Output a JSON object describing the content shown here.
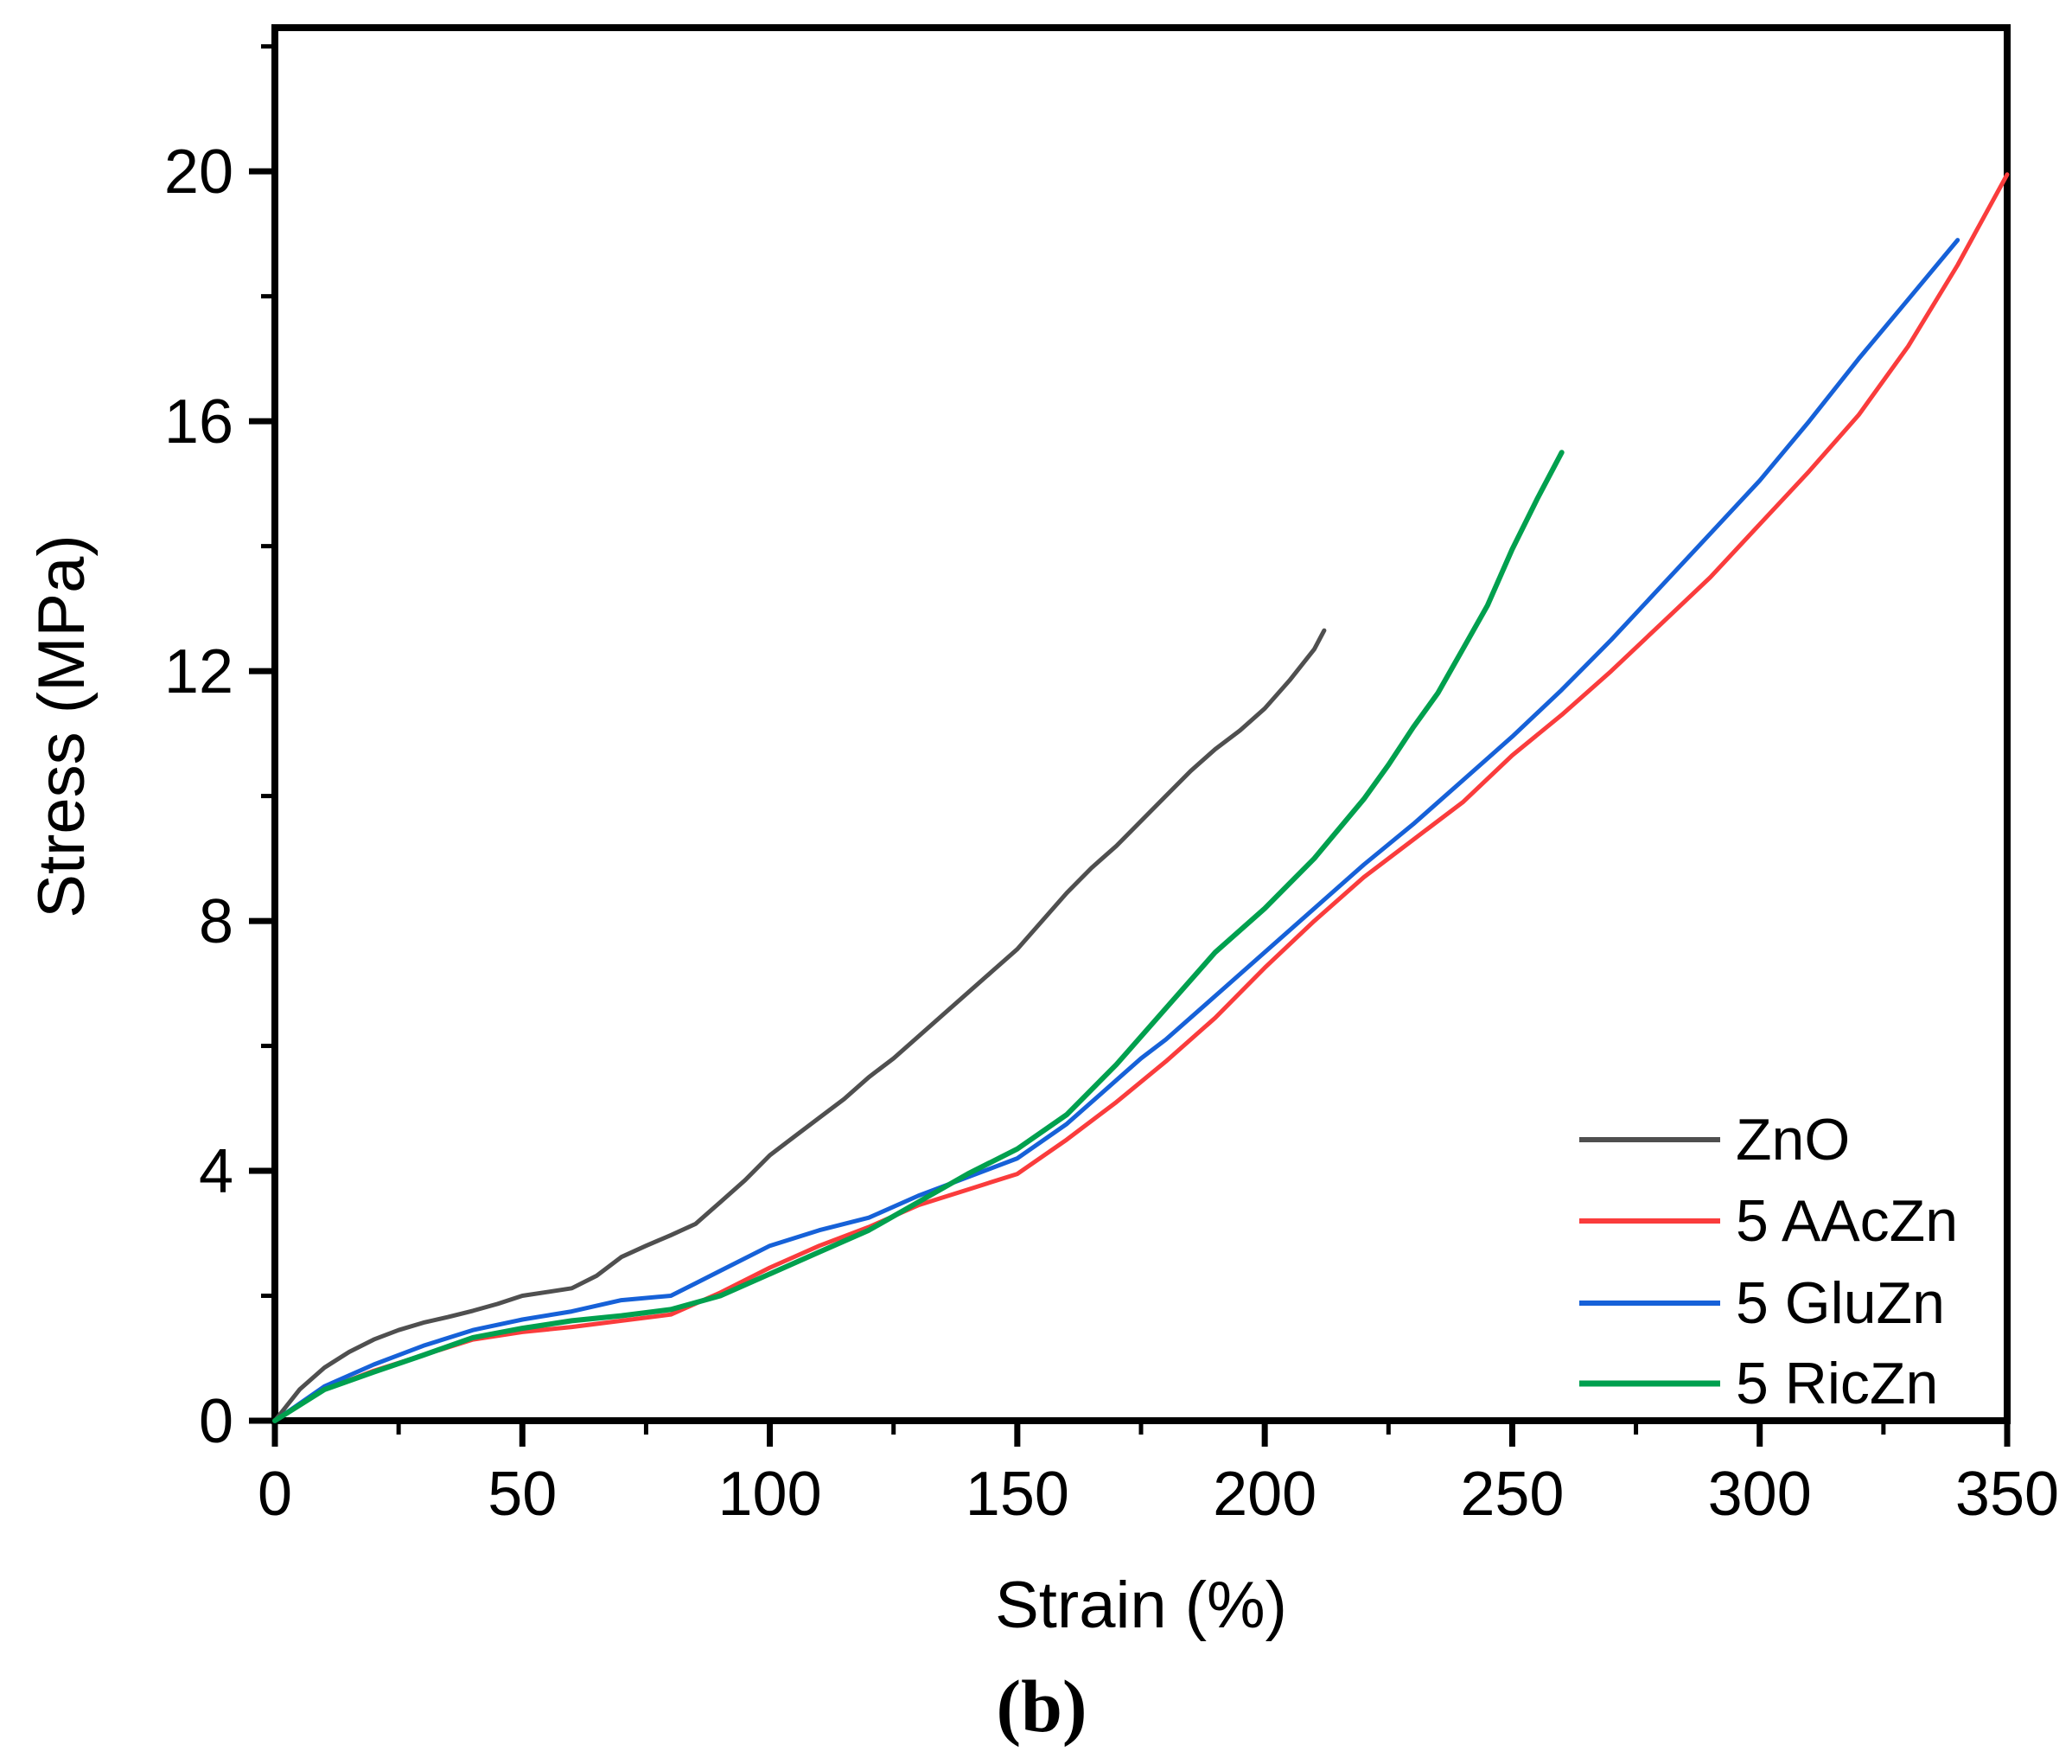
{
  "figure": {
    "caption": "(b)"
  },
  "chart_data": {
    "type": "line",
    "title": "",
    "xlabel": "Strain (%)",
    "ylabel": "Stress (MPa)",
    "xlim": [
      0,
      350
    ],
    "ylim": [
      0,
      22.3
    ],
    "x_major_ticks": [
      0,
      50,
      100,
      150,
      200,
      250,
      300,
      350
    ],
    "x_major_tick_labels": [
      "0",
      "50",
      "100",
      "150",
      "200",
      "250",
      "300",
      "350"
    ],
    "x_minor_ticks": [
      25,
      75,
      125,
      175,
      225,
      275,
      325
    ],
    "y_major_ticks": [
      0,
      4,
      8,
      12,
      16,
      20
    ],
    "y_major_tick_labels": [
      "0",
      "4",
      "8",
      "12",
      "16",
      "20"
    ],
    "y_minor_ticks": [
      2,
      6,
      10,
      14,
      18,
      22
    ],
    "grid": false,
    "legend_position": "lower right inside",
    "axis_color": "#000000",
    "background_color": "#ffffff",
    "series": [
      {
        "name": "ZnO",
        "color": "#4f4f4f",
        "stroke_width": 5,
        "points": [
          [
            0,
            0
          ],
          [
            5,
            0.5
          ],
          [
            10,
            0.85
          ],
          [
            15,
            1.1
          ],
          [
            20,
            1.3
          ],
          [
            25,
            1.45
          ],
          [
            30,
            1.57
          ],
          [
            35,
            1.66
          ],
          [
            40,
            1.76
          ],
          [
            45,
            1.87
          ],
          [
            50,
            2.0
          ],
          [
            55,
            2.06
          ],
          [
            60,
            2.12
          ],
          [
            65,
            2.32
          ],
          [
            70,
            2.62
          ],
          [
            75,
            2.8
          ],
          [
            80,
            2.97
          ],
          [
            85,
            3.15
          ],
          [
            90,
            3.5
          ],
          [
            95,
            3.85
          ],
          [
            100,
            4.25
          ],
          [
            105,
            4.55
          ],
          [
            110,
            4.85
          ],
          [
            115,
            5.15
          ],
          [
            120,
            5.5
          ],
          [
            125,
            5.8
          ],
          [
            130,
            6.15
          ],
          [
            135,
            6.5
          ],
          [
            140,
            6.85
          ],
          [
            145,
            7.2
          ],
          [
            150,
            7.55
          ],
          [
            155,
            8.0
          ],
          [
            160,
            8.45
          ],
          [
            165,
            8.85
          ],
          [
            170,
            9.2
          ],
          [
            175,
            9.6
          ],
          [
            180,
            10.0
          ],
          [
            185,
            10.4
          ],
          [
            190,
            10.75
          ],
          [
            195,
            11.05
          ],
          [
            200,
            11.4
          ],
          [
            205,
            11.85
          ],
          [
            210,
            12.35
          ],
          [
            212,
            12.65
          ]
        ]
      },
      {
        "name": "5 AAcZn",
        "color": "#fa3c3c",
        "stroke_width": 5,
        "points": [
          [
            0,
            0
          ],
          [
            10,
            0.5
          ],
          [
            20,
            0.8
          ],
          [
            30,
            1.05
          ],
          [
            40,
            1.3
          ],
          [
            50,
            1.42
          ],
          [
            60,
            1.5
          ],
          [
            70,
            1.6
          ],
          [
            80,
            1.7
          ],
          [
            90,
            2.05
          ],
          [
            100,
            2.45
          ],
          [
            110,
            2.8
          ],
          [
            120,
            3.1
          ],
          [
            130,
            3.45
          ],
          [
            140,
            3.7
          ],
          [
            150,
            3.95
          ],
          [
            160,
            4.5
          ],
          [
            170,
            5.1
          ],
          [
            180,
            5.75
          ],
          [
            190,
            6.45
          ],
          [
            200,
            7.25
          ],
          [
            210,
            8.0
          ],
          [
            220,
            8.7
          ],
          [
            230,
            9.3
          ],
          [
            240,
            9.9
          ],
          [
            250,
            10.65
          ],
          [
            260,
            11.3
          ],
          [
            270,
            12.0
          ],
          [
            280,
            12.75
          ],
          [
            290,
            13.5
          ],
          [
            300,
            14.35
          ],
          [
            310,
            15.2
          ],
          [
            320,
            16.1
          ],
          [
            330,
            17.2
          ],
          [
            340,
            18.5
          ],
          [
            350,
            19.95
          ]
        ]
      },
      {
        "name": "5 GluZn",
        "color": "#1661d8",
        "stroke_width": 5,
        "points": [
          [
            0,
            0
          ],
          [
            10,
            0.55
          ],
          [
            20,
            0.9
          ],
          [
            30,
            1.2
          ],
          [
            40,
            1.45
          ],
          [
            50,
            1.62
          ],
          [
            60,
            1.75
          ],
          [
            70,
            1.93
          ],
          [
            80,
            2.0
          ],
          [
            85,
            2.2
          ],
          [
            90,
            2.4
          ],
          [
            100,
            2.8
          ],
          [
            110,
            3.05
          ],
          [
            120,
            3.25
          ],
          [
            130,
            3.6
          ],
          [
            140,
            3.9
          ],
          [
            150,
            4.2
          ],
          [
            160,
            4.75
          ],
          [
            170,
            5.45
          ],
          [
            175,
            5.8
          ],
          [
            180,
            6.1
          ],
          [
            190,
            6.8
          ],
          [
            200,
            7.5
          ],
          [
            210,
            8.2
          ],
          [
            220,
            8.9
          ],
          [
            230,
            9.55
          ],
          [
            240,
            10.25
          ],
          [
            250,
            10.95
          ],
          [
            260,
            11.7
          ],
          [
            270,
            12.5
          ],
          [
            280,
            13.35
          ],
          [
            290,
            14.2
          ],
          [
            300,
            15.05
          ],
          [
            310,
            16.0
          ],
          [
            320,
            17.0
          ],
          [
            330,
            17.95
          ],
          [
            340,
            18.9
          ]
        ]
      },
      {
        "name": "5 RicZn",
        "color": "#00a04e",
        "stroke_width": 6,
        "points": [
          [
            0,
            0
          ],
          [
            10,
            0.5
          ],
          [
            20,
            0.78
          ],
          [
            30,
            1.05
          ],
          [
            40,
            1.33
          ],
          [
            50,
            1.48
          ],
          [
            60,
            1.6
          ],
          [
            70,
            1.68
          ],
          [
            80,
            1.78
          ],
          [
            90,
            2.0
          ],
          [
            100,
            2.35
          ],
          [
            110,
            2.7
          ],
          [
            120,
            3.05
          ],
          [
            130,
            3.5
          ],
          [
            140,
            3.95
          ],
          [
            150,
            4.35
          ],
          [
            160,
            4.9
          ],
          [
            170,
            5.7
          ],
          [
            175,
            6.15
          ],
          [
            180,
            6.6
          ],
          [
            190,
            7.5
          ],
          [
            200,
            8.2
          ],
          [
            210,
            9.0
          ],
          [
            220,
            9.95
          ],
          [
            225,
            10.5
          ],
          [
            230,
            11.1
          ],
          [
            235,
            11.65
          ],
          [
            240,
            12.35
          ],
          [
            245,
            13.05
          ],
          [
            250,
            13.95
          ],
          [
            255,
            14.75
          ],
          [
            260,
            15.5
          ]
        ]
      }
    ]
  }
}
